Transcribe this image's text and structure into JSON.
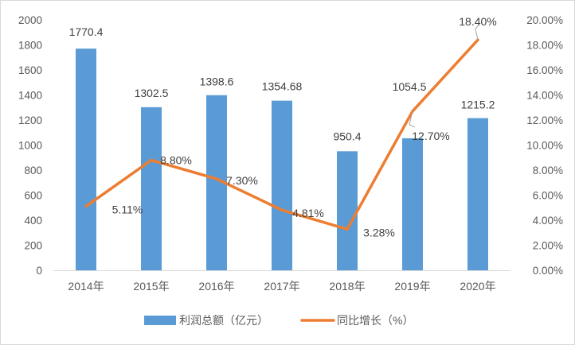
{
  "chart_data": {
    "type": "bar",
    "categories": [
      "2014年",
      "2015年",
      "2016年",
      "2017年",
      "2018年",
      "2019年",
      "2020年"
    ],
    "series": [
      {
        "name": "利润总额（亿元）",
        "type": "bar",
        "axis": "left",
        "color": "#5b9bd5",
        "values": [
          1770.4,
          1302.5,
          1398.6,
          1354.68,
          950.4,
          1054.5,
          1215.2
        ],
        "labels": [
          "1770.4",
          "1302.5",
          "1398.6",
          "1354.68",
          "950.4",
          "1054.5",
          "1215.2"
        ]
      },
      {
        "name": "同比增长（%）",
        "type": "line",
        "axis": "right",
        "color": "#ed7d31",
        "values": [
          5.11,
          8.8,
          7.3,
          4.81,
          3.28,
          12.7,
          18.4
        ],
        "labels": [
          "5.11%",
          "8.80%",
          "7.30%",
          "4.81%",
          "3.28%",
          "12.70%",
          "18.40%"
        ]
      }
    ],
    "y_left": {
      "range": [
        0,
        2000
      ],
      "ticks": [
        "0",
        "200",
        "400",
        "600",
        "800",
        "1000",
        "1200",
        "1400",
        "1600",
        "1800",
        "2000"
      ]
    },
    "y_right": {
      "range": [
        0,
        20
      ],
      "ticks": [
        "0.00%",
        "2.00%",
        "4.00%",
        "6.00%",
        "8.00%",
        "10.00%",
        "12.00%",
        "14.00%",
        "16.00%",
        "18.00%",
        "20.00%"
      ]
    },
    "grid": false,
    "legend": "bottom"
  }
}
